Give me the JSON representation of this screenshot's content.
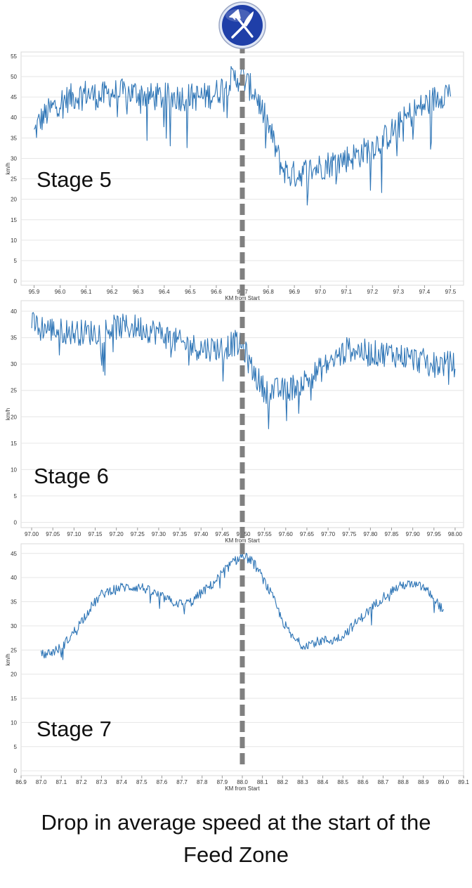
{
  "caption": {
    "line1": "Drop in average speed at the start of the",
    "line2": "Feed Zone"
  },
  "feed_icon": "fork-and-knife-icon",
  "colors": {
    "series": "#2e75b6",
    "marker_line": "#808080",
    "grid": "#e6e6e6",
    "icon_fill": "#1f3fa8"
  },
  "chart_data": [
    {
      "type": "line",
      "stage_label": "Stage 5",
      "xlabel": "KM from Start",
      "ylabel": "km/h",
      "xlim": [
        95.85,
        97.55
      ],
      "ylim": [
        -1,
        56
      ],
      "x_ticks": [
        "95.9",
        "96.0",
        "96.1",
        "96.2",
        "96.3",
        "96.4",
        "96.5",
        "96.6",
        "96.7",
        "96.8",
        "96.9",
        "97.0",
        "97.1",
        "97.2",
        "97.3",
        "97.4",
        "97.5"
      ],
      "y_ticks": [
        "0",
        "5",
        "10",
        "15",
        "20",
        "25",
        "30",
        "35",
        "40",
        "45",
        "50",
        "55"
      ],
      "feed_zone_x": 96.7,
      "series": [
        {
          "x": [
            95.9,
            95.92,
            95.95,
            96.0,
            96.05,
            96.1,
            96.15,
            96.2,
            96.25,
            96.3,
            96.35,
            96.4,
            96.45,
            96.5,
            96.55,
            96.6,
            96.65,
            96.7,
            96.72,
            96.75,
            96.78,
            96.8,
            96.83,
            96.85,
            96.88,
            96.9,
            96.95,
            97.0,
            97.05,
            97.1,
            97.15,
            97.2,
            97.25,
            97.3,
            97.35,
            97.4,
            97.45,
            97.5
          ],
          "y": [
            36,
            39,
            41,
            44,
            45,
            46,
            45,
            46,
            46,
            46,
            45,
            45,
            45,
            45,
            45,
            46,
            49,
            50,
            48,
            46,
            41,
            38,
            32,
            28,
            26,
            26,
            27,
            28,
            29,
            30,
            31,
            33,
            35,
            38,
            41,
            43,
            45,
            47
          ],
          "noise": 3.5
        }
      ]
    },
    {
      "type": "line",
      "stage_label": "Stage 6",
      "xlabel": "KM from Start",
      "ylabel": "km/h",
      "xlim": [
        96.975,
        98.02
      ],
      "ylim": [
        -1,
        42
      ],
      "x_ticks": [
        "97.00",
        "97.05",
        "97.10",
        "97.15",
        "97.20",
        "97.25",
        "97.30",
        "97.35",
        "97.40",
        "97.45",
        "97.50",
        "97.55",
        "97.60",
        "97.65",
        "97.70",
        "97.75",
        "97.80",
        "97.85",
        "97.90",
        "97.95",
        "98.00"
      ],
      "y_ticks": [
        "0",
        "5",
        "10",
        "15",
        "20",
        "25",
        "30",
        "35",
        "40"
      ],
      "feed_zone_x": 97.5,
      "series": [
        {
          "x": [
            97.0,
            97.05,
            97.1,
            97.15,
            97.2,
            97.25,
            97.3,
            97.35,
            97.4,
            97.45,
            97.48,
            97.5,
            97.52,
            97.55,
            97.6,
            97.65,
            97.7,
            97.75,
            97.8,
            97.85,
            97.9,
            97.95,
            98.0
          ],
          "y": [
            37.5,
            36.5,
            36,
            36,
            37,
            37,
            36,
            34,
            33,
            33,
            34,
            33,
            29,
            25,
            25,
            27,
            30,
            33,
            32,
            32,
            31,
            30,
            30
          ],
          "noise": 2.5
        }
      ]
    },
    {
      "type": "line",
      "stage_label": "Stage 7",
      "xlabel": "KM from Start",
      "ylabel": "km/h",
      "xlim": [
        86.9,
        89.1
      ],
      "ylim": [
        -1,
        47
      ],
      "x_ticks": [
        "86.9",
        "87.0",
        "87.1",
        "87.2",
        "87.3",
        "87.4",
        "87.5",
        "87.6",
        "87.7",
        "87.8",
        "87.9",
        "88.0",
        "88.1",
        "88.2",
        "88.3",
        "88.4",
        "88.5",
        "88.6",
        "88.7",
        "88.8",
        "88.9",
        "89.0",
        "89.1"
      ],
      "y_ticks": [
        "0",
        "5",
        "10",
        "15",
        "20",
        "25",
        "30",
        "35",
        "40",
        "45"
      ],
      "feed_zone_x": 88.0,
      "series": [
        {
          "x": [
            87.0,
            87.05,
            87.1,
            87.15,
            87.2,
            87.25,
            87.3,
            87.35,
            87.4,
            87.45,
            87.5,
            87.55,
            87.6,
            87.65,
            87.7,
            87.75,
            87.8,
            87.85,
            87.9,
            87.95,
            88.0,
            88.05,
            88.1,
            88.15,
            88.2,
            88.25,
            88.3,
            88.35,
            88.4,
            88.45,
            88.5,
            88.55,
            88.6,
            88.65,
            88.7,
            88.75,
            88.8,
            88.85,
            88.9,
            88.95,
            89.0
          ],
          "y": [
            24,
            24.5,
            25.5,
            28,
            31,
            34,
            36.5,
            37.5,
            38,
            38,
            38,
            37,
            36,
            35,
            34.5,
            35,
            37,
            38.5,
            41,
            43,
            44.5,
            43.5,
            40,
            36,
            31,
            27.5,
            26,
            26.5,
            27,
            27,
            28,
            30,
            32,
            34,
            36,
            37.5,
            38.5,
            38.5,
            38,
            36,
            33
          ],
          "noise": 1.0
        }
      ]
    }
  ]
}
